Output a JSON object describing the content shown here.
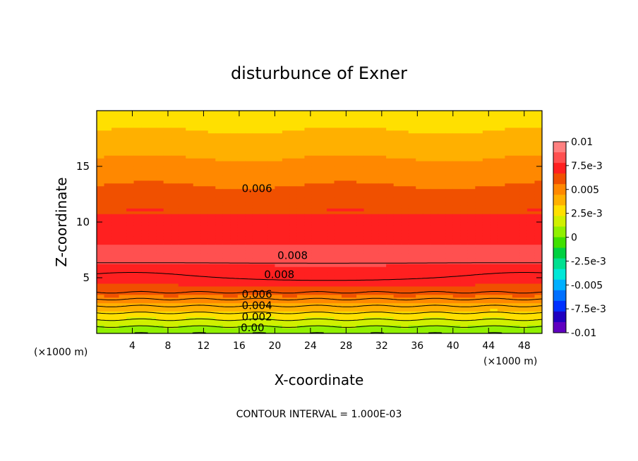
{
  "chart_data": {
    "type": "heatmap",
    "title": "disturbunce of Exner",
    "xlabel": "X-coordinate",
    "ylabel": "Z-coordinate",
    "x_unit_left": "(×1000 m)",
    "x_unit_right": "(×1000 m)",
    "footer": "CONTOUR INTERVAL = 1.000E-03",
    "xlim": [
      0,
      50
    ],
    "ylim": [
      0,
      20
    ],
    "x_ticks": [
      4,
      8,
      12,
      16,
      20,
      24,
      28,
      32,
      36,
      40,
      44,
      48
    ],
    "y_ticks": [
      5,
      10,
      15
    ],
    "grid": false,
    "contour_interval": 0.001,
    "contour_labels": [
      {
        "text": "0.006",
        "x": 18,
        "y": 13.0
      },
      {
        "text": "0.008",
        "x": 22,
        "y": 7.0
      },
      {
        "text": "0.008",
        "x": 20.5,
        "y": 5.3
      },
      {
        "text": "0.006",
        "x": 18,
        "y": 3.5
      },
      {
        "text": "0.004",
        "x": 18,
        "y": 2.5
      },
      {
        "text": "0.002",
        "x": 18,
        "y": 1.5
      },
      {
        "text": "0.00",
        "x": 17.5,
        "y": 0.5
      }
    ],
    "colorbar": {
      "position": "right",
      "min": -0.01,
      "max": 0.01,
      "labels": [
        "0.01",
        "7.5e-3",
        "0.005",
        "2.5e-3",
        "0",
        "-2.5e-3",
        "-0.005",
        "-7.5e-3",
        "-0.01"
      ],
      "colors": [
        "#ff8080",
        "#ff5050",
        "#ff2020",
        "#f05000",
        "#ff8800",
        "#ffb000",
        "#ffe000",
        "#d0f000",
        "#90f000",
        "#40e000",
        "#00d040",
        "#00e090",
        "#00e8d8",
        "#00b0ff",
        "#0070ff",
        "#0030ff",
        "#2000c0",
        "#6000c0"
      ]
    }
  }
}
